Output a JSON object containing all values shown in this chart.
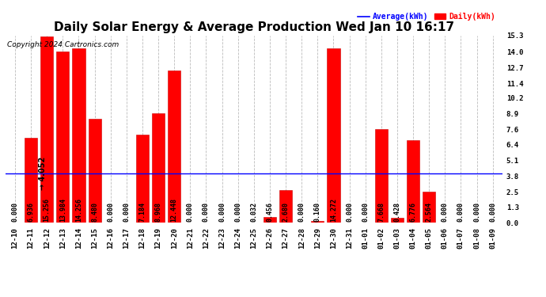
{
  "title": "Daily Solar Energy & Average Production Wed Jan 10 16:17",
  "copyright": "Copyright 2024 Cartronics.com",
  "legend_avg": "Average(kWh)",
  "legend_daily": "Daily(kWh)",
  "average_value": 4.052,
  "categories": [
    "12-10",
    "12-11",
    "12-12",
    "12-13",
    "12-14",
    "12-15",
    "12-16",
    "12-17",
    "12-18",
    "12-19",
    "12-20",
    "12-21",
    "12-22",
    "12-23",
    "12-24",
    "12-25",
    "12-26",
    "12-27",
    "12-28",
    "12-29",
    "12-30",
    "12-31",
    "01-01",
    "01-02",
    "01-03",
    "01-04",
    "01-05",
    "01-06",
    "01-07",
    "01-08",
    "01-09"
  ],
  "values": [
    0.0,
    6.936,
    15.256,
    13.984,
    14.256,
    8.48,
    0.0,
    0.0,
    7.184,
    8.968,
    12.448,
    0.0,
    0.0,
    0.0,
    0.0,
    0.032,
    0.456,
    2.68,
    0.0,
    0.16,
    14.272,
    0.0,
    0.0,
    7.668,
    0.428,
    6.776,
    2.564,
    0.0,
    0.0,
    0.0,
    0.0
  ],
  "bar_color": "#ff0000",
  "bar_edge_color": "#cc0000",
  "avg_line_color": "#0000ff",
  "background_color": "#ffffff",
  "grid_color": "#bbbbbb",
  "title_color": "#000000",
  "yticks_right": [
    0.0,
    1.3,
    2.5,
    3.8,
    5.1,
    6.4,
    7.6,
    8.9,
    10.2,
    11.4,
    12.7,
    14.0,
    15.3
  ],
  "ylim": [
    0,
    15.3
  ],
  "title_fontsize": 11,
  "tick_fontsize": 6.5,
  "label_fontsize": 6,
  "avg_annotation_fontsize": 7,
  "copyright_fontsize": 6.5
}
